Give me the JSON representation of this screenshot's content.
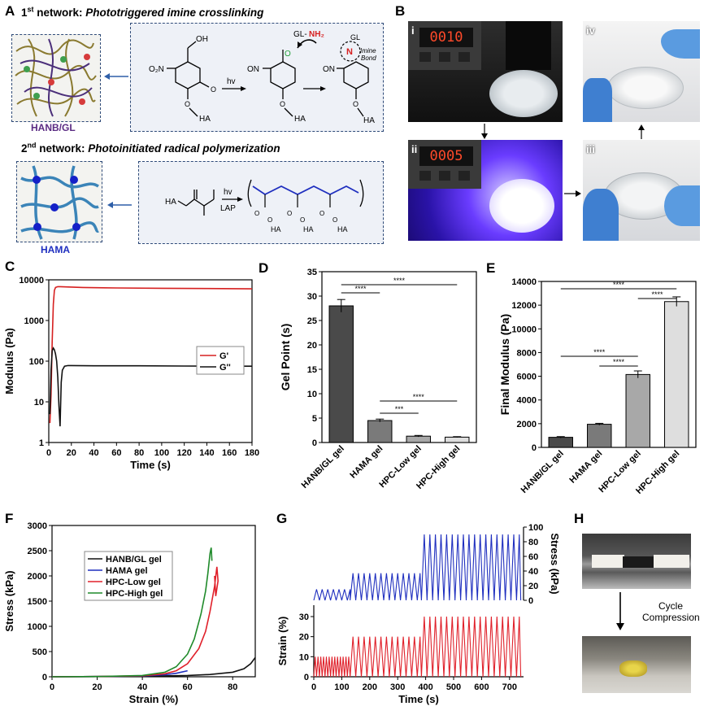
{
  "panels": {
    "A": {
      "label": "A",
      "net1_prefix": "1",
      "net1_sup": "st",
      "net1_word": " network: ",
      "net1_title": "Phototriggered imine crosslinking",
      "net2_prefix": "2",
      "net2_sup": "nd",
      "net2_word": " network: ",
      "net2_title": "Photoinitiated radical polymerization",
      "hanb_label": "HANB/GL",
      "hama_label": "HAMA",
      "chem": {
        "oh": "OH",
        "o2n": "O₂N",
        "ha": "HA",
        "hv": "hv",
        "on": "ON",
        "o": "O",
        "gl_nh2_gl": "GL-",
        "gl_nh2_nh2": "NH₂",
        "gl": "GL",
        "n": "N",
        "imine": "Imine",
        "bond": "Bond",
        "lap": "LAP"
      }
    },
    "B": {
      "label": "B",
      "steps": [
        "i",
        "ii",
        "iii",
        "iv"
      ],
      "display_i": "0010",
      "display_ii": "0005"
    },
    "C": {
      "label": "C",
      "chart_data": {
        "type": "line",
        "xlabel": "Time (s)",
        "ylabel": "Modulus (Pa)",
        "xlim": [
          0,
          180
        ],
        "ylim": [
          1,
          10000
        ],
        "yscale": "log",
        "xticks": [
          "0",
          "20",
          "40",
          "60",
          "80",
          "100",
          "120",
          "140",
          "160",
          "180"
        ],
        "yticks": [
          "1",
          "10",
          "100",
          "1000",
          "10000"
        ],
        "legend_position": "center-right",
        "series": [
          {
            "name": "G'",
            "color": "#d62020",
            "x": [
              1,
              2,
              3,
              4,
              5,
              6,
              8,
              10,
              15,
              30,
              60,
              100,
              140,
              180
            ],
            "y": [
              3,
              15,
              300,
              2500,
              5500,
              6500,
              6800,
              6800,
              6700,
              6500,
              6300,
              6200,
              6100,
              6000
            ]
          },
          {
            "name": "G''",
            "color": "#111111",
            "x": [
              1,
              2,
              3,
              4,
              5,
              6,
              7,
              8,
              9,
              10,
              11,
              12,
              14,
              17,
              20,
              40,
              80,
              120,
              180
            ],
            "y": [
              5,
              60,
              180,
              210,
              190,
              150,
              100,
              40,
              8,
              2.5,
              30,
              60,
              75,
              78,
              78,
              77,
              77,
              76,
              75
            ]
          }
        ]
      }
    },
    "D": {
      "label": "D",
      "chart_data": {
        "type": "bar",
        "categories": [
          "HANB/GL gel",
          "HAMA gel",
          "HPC-Low gel",
          "HPC-High gel"
        ],
        "values": [
          28,
          4.5,
          1.3,
          1.1
        ],
        "errors": [
          1.3,
          0.3,
          0.15,
          0.1
        ],
        "ylabel": "Gel Point (s)",
        "ylim": [
          0,
          35
        ],
        "yticks": [
          "0",
          "5",
          "10",
          "15",
          "20",
          "25",
          "30",
          "35"
        ],
        "colors": [
          "#4a4a4a",
          "#7a7a7a",
          "#a8a8a8",
          "#dedede"
        ],
        "annotations": [
          {
            "from": 0,
            "to": 1,
            "text": "****"
          },
          {
            "from": 0,
            "to": 3,
            "text": "****"
          },
          {
            "from": 1,
            "to": 2,
            "text": "***"
          },
          {
            "from": 1,
            "to": 3,
            "text": "****"
          }
        ]
      }
    },
    "E": {
      "label": "E",
      "chart_data": {
        "type": "bar",
        "categories": [
          "HANB/GL gel",
          "HAMA gel",
          "HPC-Low gel",
          "HPC-High gel"
        ],
        "values": [
          850,
          1950,
          6150,
          12300
        ],
        "errors": [
          60,
          80,
          300,
          400
        ],
        "ylabel": "Final Modulus (Pa)",
        "ylim": [
          0,
          14000
        ],
        "yticks": [
          "0",
          "2000",
          "4000",
          "6000",
          "8000",
          "10000",
          "12000",
          "14000"
        ],
        "colors": [
          "#4a4a4a",
          "#7a7a7a",
          "#a8a8a8",
          "#dedede"
        ],
        "annotations": [
          {
            "from": 0,
            "to": 3,
            "text": "****"
          },
          {
            "from": 2,
            "to": 3,
            "text": "****"
          },
          {
            "from": 0,
            "to": 2,
            "text": "****"
          },
          {
            "from": 1,
            "to": 2,
            "text": "****"
          }
        ]
      }
    },
    "F": {
      "label": "F",
      "chart_data": {
        "type": "line",
        "xlabel": "Strain (%)",
        "ylabel": "Stress (kPa)",
        "xlim": [
          0,
          90
        ],
        "ylim": [
          0,
          3000
        ],
        "xticks": [
          "0",
          "20",
          "40",
          "60",
          "80"
        ],
        "yticks": [
          "0",
          "500",
          "1000",
          "1500",
          "2000",
          "2500",
          "3000"
        ],
        "legend_position": "center",
        "series": [
          {
            "name": "HANB/GL gel",
            "color": "#111111",
            "x": [
              0,
              20,
              40,
              60,
              70,
              80,
              85,
              88,
              90
            ],
            "y": [
              0,
              5,
              10,
              25,
              45,
              90,
              160,
              260,
              380
            ]
          },
          {
            "name": "HAMA gel",
            "color": "#1f2fbf",
            "x": [
              0,
              20,
              40,
              50,
              55,
              60
            ],
            "y": [
              0,
              5,
              15,
              40,
              70,
              120
            ]
          },
          {
            "name": "HPC-Low gel",
            "color": "#e0202a",
            "x": [
              0,
              20,
              40,
              50,
              55,
              60,
              65,
              68,
              70,
              72,
              73,
              73.5,
              72.5,
              72
            ],
            "y": [
              0,
              5,
              20,
              60,
              120,
              260,
              560,
              900,
              1300,
              1800,
              2180,
              1900,
              1600,
              2000
            ]
          },
          {
            "name": "HPC-High gel",
            "color": "#1f8a2a",
            "x": [
              0,
              20,
              40,
              50,
              55,
              60,
              63,
              66,
              68,
              69,
              70,
              70.5,
              70.8
            ],
            "y": [
              0,
              5,
              25,
              90,
              200,
              450,
              750,
              1250,
              1700,
              2050,
              2450,
              2560,
              2300
            ]
          }
        ]
      }
    },
    "G": {
      "label": "G",
      "chart_data": {
        "type": "line",
        "xlabel": "Time (s)",
        "ylabel": "Strain (%)",
        "y2label": "Stress (kPa)",
        "xlim": [
          0,
          750
        ],
        "xticks": [
          "0",
          "100",
          "200",
          "300",
          "400",
          "500",
          "600",
          "700"
        ],
        "yticks": [
          "0",
          "10",
          "20",
          "30"
        ],
        "y2ticks": [
          "0",
          "20",
          "40",
          "60",
          "80",
          "100"
        ],
        "strain_levels": [
          {
            "from": 0,
            "to": 130,
            "amplitude": 10
          },
          {
            "from": 130,
            "to": 385,
            "amplitude": 20
          },
          {
            "from": 385,
            "to": 740,
            "amplitude": 30
          }
        ],
        "stress_levels": [
          {
            "from": 0,
            "to": 130,
            "amplitude": 15
          },
          {
            "from": 130,
            "to": 385,
            "amplitude": 37
          },
          {
            "from": 385,
            "to": 740,
            "amplitude": 90
          }
        ],
        "strain_color": "#e0202a",
        "stress_color": "#1f2fbf"
      }
    },
    "H": {
      "label": "H",
      "caption_line1": "Cycle",
      "caption_line2": "Compression"
    }
  }
}
